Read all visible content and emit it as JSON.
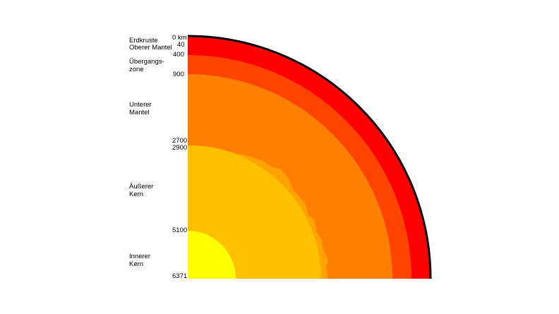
{
  "layers": [
    {
      "name": "Erdkruste",
      "color": "#ff0000"
    },
    {
      "name": "Oberer Mantel",
      "color": "#ff0000"
    },
    {
      "name": "Übergangs-\nzone",
      "color": "#ff4400"
    },
    {
      "name": "Unterer\nMantel",
      "color": "#ff8000"
    },
    {
      "name": "Äußerer\nKern",
      "color": "#ffc000"
    },
    {
      "name": "Innerer\nKern",
      "color": "#ffff00"
    }
  ],
  "depths": [
    "0 km",
    "40",
    "400",
    "900",
    "2700",
    "2900",
    "5100",
    "6371"
  ],
  "colors": {
    "crust_upper_mantle": "#ff0000",
    "transition_zone": "#ff4400",
    "lower_mantle": "#ff8000",
    "outer_core": "#ffc000",
    "inner_core": "#ffff00",
    "outline": "#000000"
  }
}
